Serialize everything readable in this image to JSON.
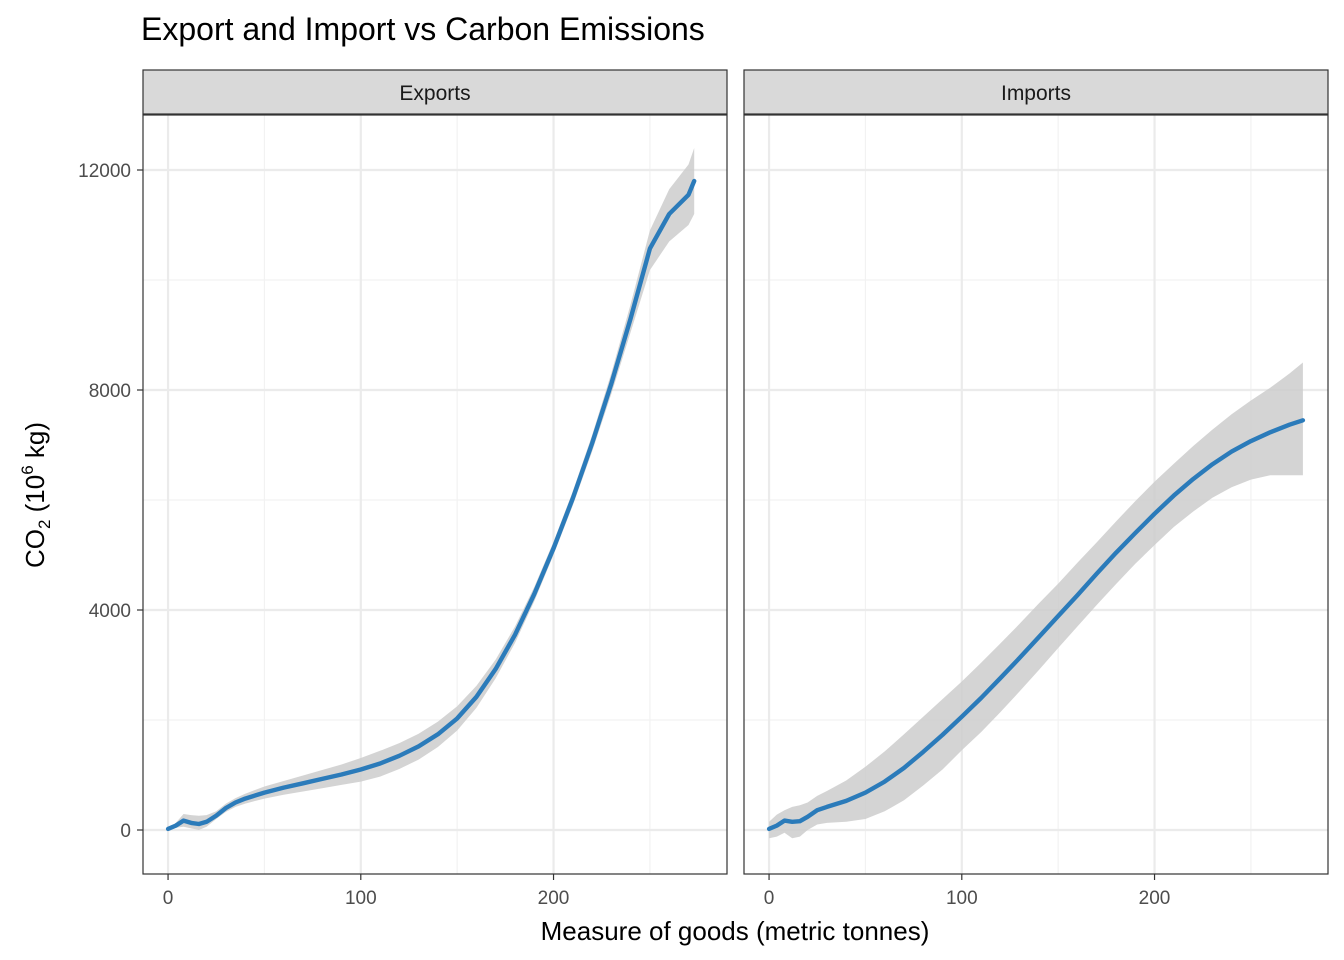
{
  "chart_data": {
    "type": "line",
    "title": "Export and Import vs Carbon Emissions",
    "xlabel": "Measure of goods (metric tonnes)",
    "ylabel": {
      "base": "CO",
      "subscript": "2",
      "open": " (10",
      "superscript": "6",
      "unit": " kg)"
    },
    "xlim": [
      -13,
      290
    ],
    "ylim": [
      -800,
      13000
    ],
    "x_ticks": [
      0,
      100,
      200
    ],
    "x_tick_labels": [
      "0",
      "100",
      "200"
    ],
    "y_ticks": [
      0,
      4000,
      8000,
      12000
    ],
    "y_tick_labels": [
      "0",
      "4000",
      "8000",
      "12000"
    ],
    "grid": true,
    "line_color": "#2b7bba",
    "band_color": "#cccccc",
    "panels": [
      {
        "strip": "Exports",
        "series": [
          {
            "x": [
              0,
              4,
              8,
              12,
              16,
              20,
              25,
              30,
              35,
              40,
              50,
              60,
              70,
              80,
              90,
              100,
              110,
              120,
              130,
              140,
              150,
              160,
              170,
              180,
              190,
              200,
              210,
              220,
              230,
              240,
              250,
              260,
              270,
              273
            ],
            "y": [
              20,
              80,
              170,
              130,
              110,
              150,
              260,
              400,
              500,
              570,
              680,
              770,
              850,
              930,
              1010,
              1100,
              1210,
              1350,
              1520,
              1740,
              2030,
              2420,
              2930,
              3550,
              4290,
              5120,
              6030,
              7030,
              8120,
              9300,
              10570,
              11200,
              11550,
              11800
            ],
            "lower": [
              10,
              40,
              60,
              30,
              0,
              60,
              200,
              330,
              420,
              480,
              570,
              640,
              700,
              760,
              820,
              880,
              970,
              1110,
              1280,
              1510,
              1810,
              2220,
              2760,
              3400,
              4160,
              5000,
              5900,
              6880,
              7930,
              9050,
              10180,
              10700,
              11000,
              11200
            ],
            "upper": [
              30,
              130,
              290,
              270,
              260,
              270,
              340,
              480,
              580,
              660,
              790,
              890,
              990,
              1090,
              1190,
              1310,
              1440,
              1580,
              1750,
              1970,
              2250,
              2620,
              3100,
              3700,
              4420,
              5240,
              6160,
              7180,
              8310,
              9560,
              10900,
              11650,
              12100,
              12400
            ]
          }
        ]
      },
      {
        "strip": "Imports",
        "series": [
          {
            "x": [
              0,
              4,
              8,
              12,
              16,
              20,
              25,
              30,
              40,
              50,
              60,
              70,
              80,
              90,
              100,
              110,
              120,
              130,
              140,
              150,
              160,
              170,
              180,
              190,
              200,
              210,
              220,
              230,
              240,
              250,
              260,
              270,
              277
            ],
            "y": [
              20,
              80,
              170,
              150,
              160,
              240,
              360,
              420,
              530,
              680,
              880,
              1130,
              1420,
              1730,
              2060,
              2400,
              2760,
              3130,
              3510,
              3890,
              4270,
              4660,
              5040,
              5400,
              5750,
              6080,
              6380,
              6650,
              6880,
              7070,
              7230,
              7370,
              7450
            ],
            "lower": [
              -150,
              -120,
              -50,
              -150,
              -120,
              0,
              100,
              130,
              150,
              200,
              340,
              540,
              810,
              1100,
              1450,
              1780,
              2140,
              2520,
              2910,
              3310,
              3700,
              4090,
              4470,
              4840,
              5180,
              5510,
              5790,
              6040,
              6230,
              6370,
              6450,
              6450,
              6450
            ],
            "upper": [
              150,
              280,
              360,
              420,
              450,
              500,
              620,
              710,
              900,
              1150,
              1430,
              1740,
              2060,
              2380,
              2700,
              3040,
              3390,
              3750,
              4120,
              4480,
              4860,
              5230,
              5610,
              5980,
              6330,
              6660,
              6980,
              7280,
              7560,
              7810,
              8040,
              8300,
              8500
            ]
          }
        ]
      }
    ]
  }
}
